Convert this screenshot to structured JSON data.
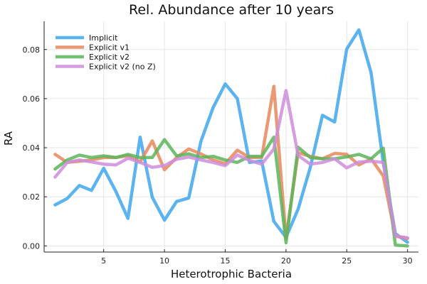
{
  "chart_data": {
    "type": "line",
    "title": "Rel. Abundance after 10 years",
    "xlabel": "Heterotrophic Bacteria",
    "ylabel": "RA",
    "xlim": [
      0.1,
      30.9
    ],
    "ylim": [
      -0.0025,
      0.0915
    ],
    "xticks": [
      5,
      10,
      15,
      20,
      25,
      30
    ],
    "yticks": [
      0.0,
      0.02,
      0.04,
      0.06,
      0.08
    ],
    "ytick_labels": [
      "0.00",
      "0.02",
      "0.04",
      "0.06",
      "0.08"
    ],
    "grid": true,
    "legend_position": "top-left",
    "x": [
      1,
      2,
      3,
      4,
      5,
      6,
      7,
      8,
      9,
      10,
      11,
      12,
      13,
      14,
      15,
      16,
      17,
      18,
      19,
      20,
      21,
      22,
      23,
      24,
      25,
      26,
      27,
      28,
      29,
      30
    ],
    "series": [
      {
        "name": "Implicit",
        "color": "#3ea6ed",
        "values": [
          0.0167,
          0.0193,
          0.0246,
          0.0226,
          0.0316,
          0.0222,
          0.0112,
          0.0443,
          0.0198,
          0.0105,
          0.0181,
          0.0195,
          0.0426,
          0.0563,
          0.066,
          0.06,
          0.034,
          0.0346,
          0.01,
          0.0035,
          0.015,
          0.032,
          0.0532,
          0.0505,
          0.0802,
          0.088,
          0.0706,
          0.034,
          0.005,
          0.0015
        ]
      },
      {
        "name": "Explicit v1",
        "color": "#e8875a",
        "values": [
          0.0373,
          0.034,
          0.0345,
          0.035,
          0.036,
          0.036,
          0.0368,
          0.0342,
          0.0428,
          0.031,
          0.036,
          0.0395,
          0.0375,
          0.035,
          0.0335,
          0.039,
          0.036,
          0.036,
          0.065,
          0.003,
          0.038,
          0.0365,
          0.0355,
          0.0377,
          0.0373,
          0.033,
          0.0355,
          0.0285,
          0.004,
          0.003
        ]
      },
      {
        "name": "Explicit v2",
        "color": "#5ab55a",
        "values": [
          0.0313,
          0.035,
          0.037,
          0.036,
          0.0367,
          0.036,
          0.0373,
          0.036,
          0.036,
          0.0433,
          0.0367,
          0.0375,
          0.036,
          0.0365,
          0.035,
          0.034,
          0.0365,
          0.0365,
          0.0443,
          0.0013,
          0.0402,
          0.036,
          0.0355,
          0.0355,
          0.0363,
          0.0373,
          0.0355,
          0.0398,
          0.0003,
          0.0
        ]
      },
      {
        "name": "Explicit v2 (no Z)",
        "color": "#cc8ddc",
        "values": [
          0.028,
          0.034,
          0.035,
          0.0342,
          0.0333,
          0.033,
          0.0357,
          0.034,
          0.032,
          0.0327,
          0.0353,
          0.0362,
          0.035,
          0.034,
          0.0327,
          0.037,
          0.0348,
          0.0333,
          0.0395,
          0.0633,
          0.0368,
          0.0333,
          0.034,
          0.0355,
          0.0318,
          0.0342,
          0.0345,
          0.034,
          0.004,
          0.0033
        ]
      }
    ]
  }
}
